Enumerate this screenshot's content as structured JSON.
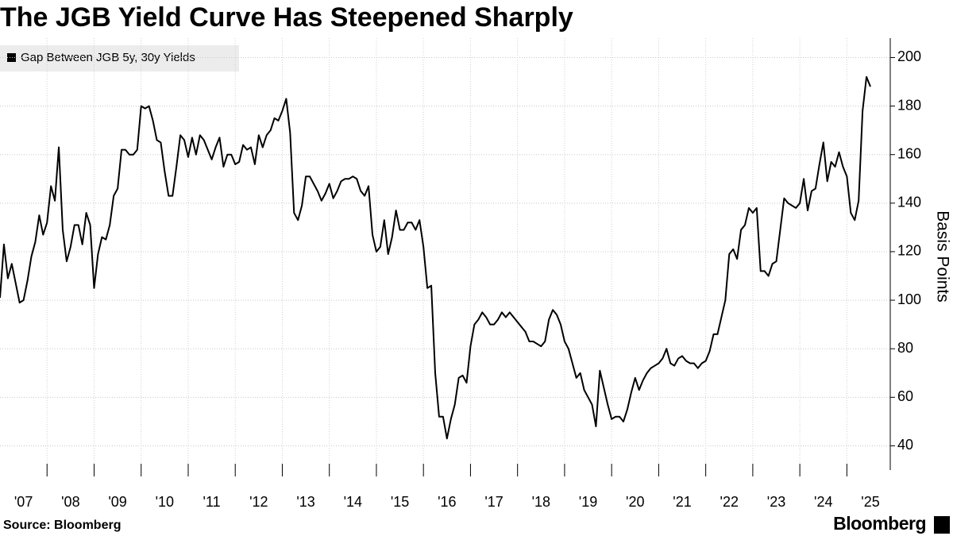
{
  "chart_data": {
    "type": "line",
    "title": "The JGB Yield Curve Has Steepened Sharply",
    "y_label": "Basis Points",
    "source": "Source: Bloomberg",
    "logo": "Bloomberg",
    "grid": true,
    "ylim": [
      30,
      208
    ],
    "yticks": [
      40,
      60,
      80,
      100,
      120,
      140,
      160,
      180,
      200
    ],
    "categories": [
      null,
      null,
      null,
      null,
      null,
      null,
      "'07",
      null,
      null,
      null,
      null,
      null,
      null,
      null,
      null,
      null,
      null,
      null,
      "'08",
      null,
      null,
      null,
      null,
      null,
      null,
      null,
      null,
      null,
      null,
      null,
      "'09",
      null,
      null,
      null,
      null,
      null,
      null,
      null,
      null,
      null,
      null,
      null,
      "'10",
      null,
      null,
      null,
      null,
      null,
      null,
      null,
      null,
      null,
      null,
      null,
      "'11",
      null,
      null,
      null,
      null,
      null,
      null,
      null,
      null,
      null,
      null,
      null,
      "'12",
      null,
      null,
      null,
      null,
      null,
      null,
      null,
      null,
      null,
      null,
      null,
      "'13",
      null,
      null,
      null,
      null,
      null,
      null,
      null,
      null,
      null,
      null,
      null,
      "'14",
      null,
      null,
      null,
      null,
      null,
      null,
      null,
      null,
      null,
      null,
      null,
      "'15",
      null,
      null,
      null,
      null,
      null,
      null,
      null,
      null,
      null,
      null,
      null,
      "'16",
      null,
      null,
      null,
      null,
      null,
      null,
      null,
      null,
      null,
      null,
      null,
      "'17",
      null,
      null,
      null,
      null,
      null,
      null,
      null,
      null,
      null,
      null,
      null,
      "'18",
      null,
      null,
      null,
      null,
      null,
      null,
      null,
      null,
      null,
      null,
      null,
      "'19",
      null,
      null,
      null,
      null,
      null,
      null,
      null,
      null,
      null,
      null,
      null,
      "'20",
      null,
      null,
      null,
      null,
      null,
      null,
      null,
      null,
      null,
      null,
      null,
      "'21",
      null,
      null,
      null,
      null,
      null,
      null,
      null,
      null,
      null,
      null,
      null,
      "'22",
      null,
      null,
      null,
      null,
      null,
      null,
      null,
      null,
      null,
      null,
      null,
      "'23",
      null,
      null,
      null,
      null,
      null,
      null,
      null,
      null,
      null,
      null,
      null,
      "'24",
      null,
      null,
      null,
      null,
      null,
      null,
      null,
      null,
      null,
      null,
      null,
      "'25"
    ],
    "series": [
      {
        "name": "Gap Between JGB 5y, 30y Yields",
        "color": "#000000",
        "values": [
          101,
          123,
          109,
          115,
          107,
          99,
          100,
          108,
          118,
          124,
          135,
          127,
          132,
          147,
          141,
          163,
          129,
          116,
          122,
          131,
          131,
          123,
          136,
          131,
          105,
          119,
          126,
          125,
          131,
          143,
          146,
          162,
          162,
          160,
          160,
          162,
          180,
          179,
          180,
          174,
          166,
          165,
          153,
          143,
          143,
          155,
          168,
          166,
          159,
          167,
          160,
          168,
          166,
          162,
          158,
          163,
          167,
          155,
          160,
          160,
          156,
          157,
          164,
          162,
          163,
          156,
          168,
          163,
          168,
          170,
          175,
          174,
          178,
          183,
          169,
          136,
          133,
          139,
          151,
          151,
          148,
          145,
          141,
          144,
          148,
          142,
          145,
          149,
          150,
          150,
          151,
          150,
          145,
          143,
          147,
          127,
          120,
          122,
          133,
          119,
          126,
          137,
          129,
          129,
          132,
          132,
          129,
          133,
          122,
          105,
          106,
          70,
          52,
          52,
          43,
          51,
          57,
          68,
          69,
          66,
          81,
          90,
          92,
          95,
          93,
          90,
          90,
          92,
          95,
          93,
          95,
          93,
          91,
          89,
          87,
          83,
          83,
          82,
          81,
          83,
          92,
          96,
          94,
          90,
          83,
          80,
          74,
          68,
          70,
          63,
          60,
          57,
          48,
          71,
          64,
          57,
          51,
          52,
          52,
          50,
          55,
          62,
          68,
          63,
          67,
          70,
          72,
          73,
          74,
          76,
          80,
          74,
          73,
          76,
          77,
          75,
          74,
          74,
          72,
          74,
          75,
          79,
          86,
          86,
          93,
          100,
          119,
          121,
          117,
          129,
          131,
          138,
          136,
          138,
          112,
          112,
          110,
          115,
          116,
          129,
          142,
          140,
          139,
          138,
          140,
          150,
          137,
          145,
          146,
          156,
          165,
          149,
          157,
          155,
          161,
          155,
          151,
          136,
          133,
          141,
          178,
          192,
          188
        ]
      }
    ]
  }
}
